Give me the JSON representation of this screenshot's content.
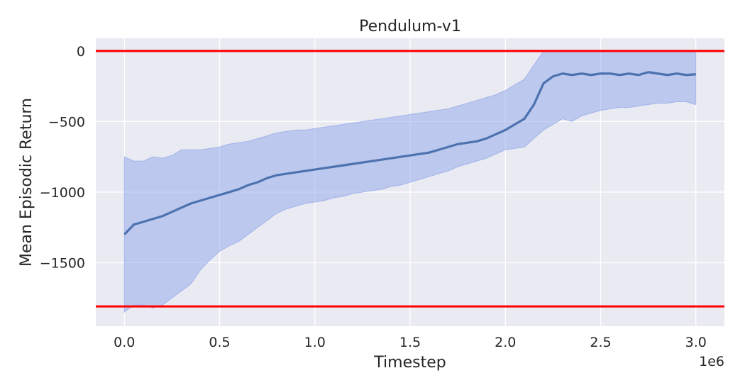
{
  "chart_data": {
    "type": "line",
    "title": "Pendulum-v1",
    "xlabel": "Timestep",
    "ylabel": "Mean Episodic Return",
    "x_offset_label": "1e6",
    "xlim": [
      -0.15,
      3.15
    ],
    "ylim": [
      -1950,
      90
    ],
    "x_ticks": [
      0.0,
      0.5,
      1.0,
      1.5,
      2.0,
      2.5,
      3.0
    ],
    "x_tick_labels": [
      "0.0",
      "0.5",
      "1.0",
      "1.5",
      "2.0",
      "2.5",
      "3.0"
    ],
    "y_ticks": [
      0,
      -500,
      -1000,
      -1500
    ],
    "y_tick_labels": [
      "0",
      "−500",
      "−1000",
      "−1500"
    ],
    "grid": true,
    "background": "#eaeaf2",
    "reference_lines": [
      {
        "y": 0,
        "color": "#ff0000"
      },
      {
        "y": -1810,
        "color": "#ff0000"
      }
    ],
    "series": [
      {
        "color": "#4c72b0",
        "band_color": "#8ea5e8",
        "x": [
          0.0,
          0.05,
          0.1,
          0.15,
          0.2,
          0.25,
          0.3,
          0.35,
          0.4,
          0.45,
          0.5,
          0.55,
          0.6,
          0.65,
          0.7,
          0.75,
          0.8,
          0.85,
          0.9,
          0.95,
          1.0,
          1.05,
          1.1,
          1.15,
          1.2,
          1.25,
          1.3,
          1.35,
          1.4,
          1.45,
          1.5,
          1.55,
          1.6,
          1.65,
          1.7,
          1.75,
          1.8,
          1.85,
          1.9,
          1.95,
          2.0,
          2.05,
          2.1,
          2.15,
          2.2,
          2.25,
          2.3,
          2.35,
          2.4,
          2.45,
          2.5,
          2.55,
          2.6,
          2.65,
          2.7,
          2.75,
          2.8,
          2.85,
          2.9,
          2.95,
          3.0
        ],
        "mean": [
          -1300,
          -1230,
          -1210,
          -1190,
          -1170,
          -1140,
          -1110,
          -1080,
          -1060,
          -1040,
          -1020,
          -1000,
          -980,
          -950,
          -930,
          -900,
          -880,
          -870,
          -860,
          -850,
          -840,
          -830,
          -820,
          -810,
          -800,
          -790,
          -780,
          -770,
          -760,
          -750,
          -740,
          -730,
          -720,
          -700,
          -680,
          -660,
          -650,
          -640,
          -620,
          -590,
          -560,
          -520,
          -480,
          -380,
          -230,
          -180,
          -160,
          -170,
          -160,
          -170,
          -160,
          -160,
          -170,
          -160,
          -170,
          -150,
          -160,
          -170,
          -160,
          -170,
          -165
        ],
        "upper": [
          -750,
          -780,
          -780,
          -750,
          -760,
          -740,
          -700,
          -700,
          -700,
          -690,
          -680,
          -660,
          -650,
          -640,
          -620,
          -600,
          -580,
          -570,
          -560,
          -560,
          -550,
          -540,
          -530,
          -520,
          -510,
          -500,
          -490,
          -480,
          -470,
          -460,
          -450,
          -440,
          -430,
          -420,
          -410,
          -390,
          -370,
          -350,
          -330,
          -310,
          -280,
          -240,
          -200,
          -100,
          0,
          0,
          0,
          0,
          0,
          0,
          0,
          0,
          0,
          0,
          0,
          0,
          0,
          0,
          0,
          0,
          0
        ],
        "lower": [
          -1850,
          -1800,
          -1800,
          -1820,
          -1800,
          -1750,
          -1700,
          -1650,
          -1550,
          -1480,
          -1420,
          -1380,
          -1350,
          -1300,
          -1250,
          -1200,
          -1150,
          -1120,
          -1100,
          -1080,
          -1070,
          -1060,
          -1040,
          -1030,
          -1010,
          -1000,
          -990,
          -980,
          -960,
          -950,
          -930,
          -910,
          -890,
          -870,
          -850,
          -820,
          -800,
          -780,
          -760,
          -730,
          -700,
          -690,
          -680,
          -620,
          -560,
          -520,
          -480,
          -500,
          -460,
          -440,
          -420,
          -410,
          -400,
          -400,
          -390,
          -380,
          -370,
          -370,
          -360,
          -360,
          -380
        ]
      }
    ]
  }
}
